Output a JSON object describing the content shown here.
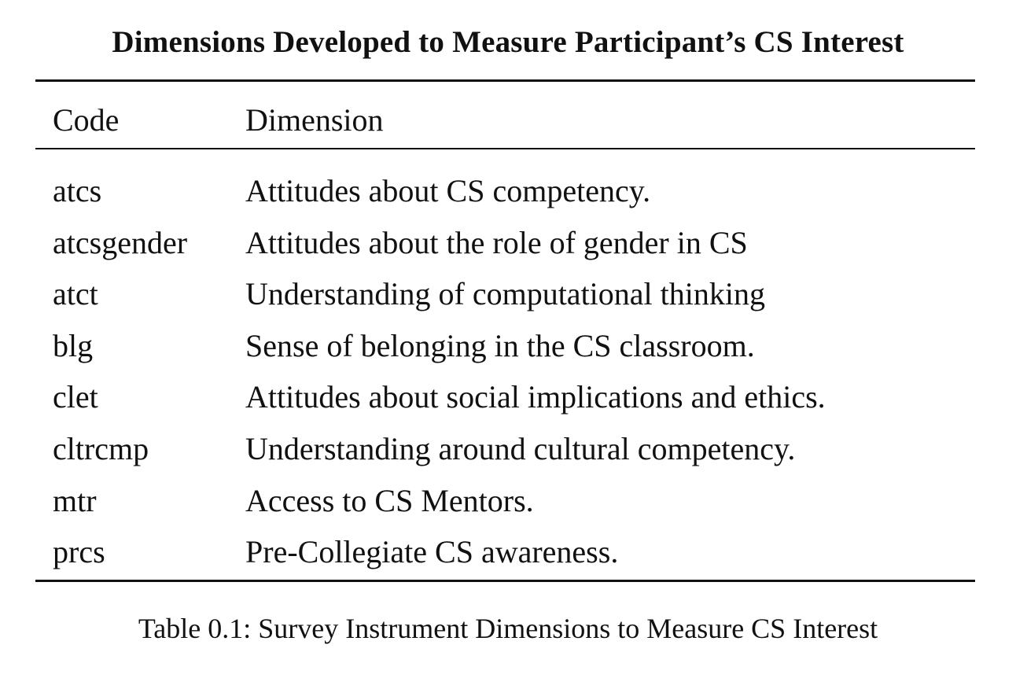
{
  "title": "Dimensions Developed to Measure Participant’s CS Interest",
  "table": {
    "headers": {
      "code": "Code",
      "dimension": "Dimension"
    },
    "rows": [
      {
        "code": "atcs",
        "dimension": "Attitudes about CS competency."
      },
      {
        "code": "atcsgender",
        "dimension": "Attitudes about the role of gender in CS"
      },
      {
        "code": "atct",
        "dimension": "Understanding of computational thinking"
      },
      {
        "code": "blg",
        "dimension": "Sense of belonging in the CS classroom."
      },
      {
        "code": "clet",
        "dimension": "Attitudes about social implications and ethics."
      },
      {
        "code": "cltrcmp",
        "dimension": "Understanding around cultural competency."
      },
      {
        "code": "mtr",
        "dimension": "Access to CS Mentors."
      },
      {
        "code": "prcs",
        "dimension": "Pre-Collegiate CS awareness."
      }
    ]
  },
  "caption": "Table 0.1: Survey Instrument Dimensions to Measure CS Interest"
}
